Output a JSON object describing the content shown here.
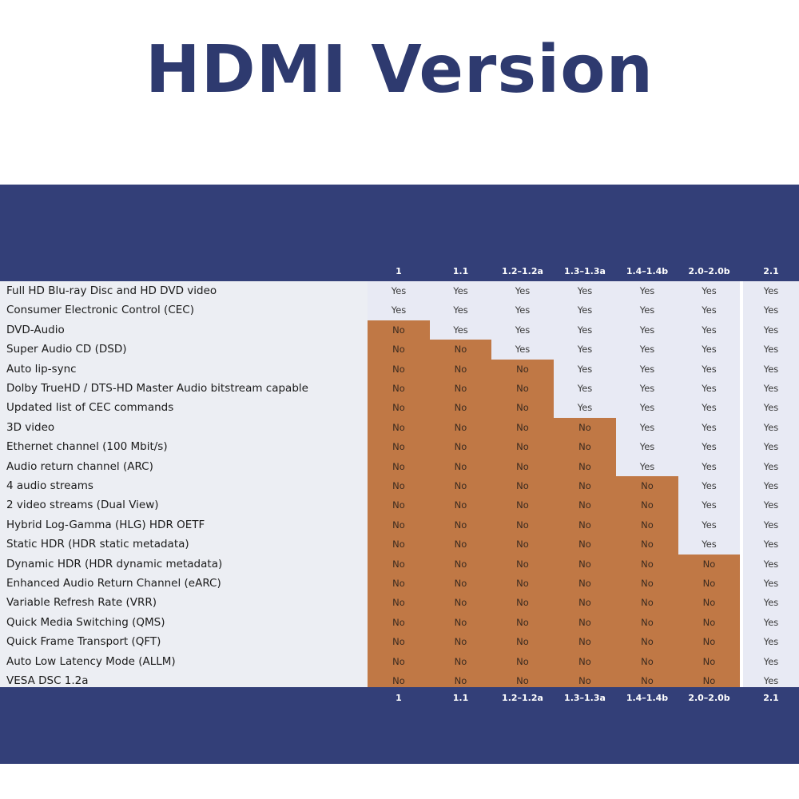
{
  "title": "HDMI Version",
  "versions": [
    "1",
    "1.1",
    "1.2–1.2a",
    "1.3–1.3a",
    "1.4–1.4b",
    "2.0–2.0b",
    "2.1"
  ],
  "colors": {
    "header_band": "#333f78",
    "yes_cell": "#e8eaf4",
    "no_cell": "#c07845",
    "title": "#2e3a6f"
  },
  "yes_label": "Yes",
  "no_label": "No",
  "features": [
    {
      "name": "Full HD Blu-ray Disc and HD DVD video",
      "first_version_index": 0
    },
    {
      "name": "Consumer Electronic Control (CEC)",
      "first_version_index": 0
    },
    {
      "name": "DVD-Audio",
      "first_version_index": 1
    },
    {
      "name": "Super Audio CD (DSD)",
      "first_version_index": 2
    },
    {
      "name": "Auto lip-sync",
      "first_version_index": 3
    },
    {
      "name": "Dolby TrueHD / DTS-HD Master Audio bitstream capable",
      "first_version_index": 3
    },
    {
      "name": "Updated list of CEC commands",
      "first_version_index": 3
    },
    {
      "name": "3D video",
      "first_version_index": 4
    },
    {
      "name": "Ethernet channel (100 Mbit/s)",
      "first_version_index": 4
    },
    {
      "name": "Audio return channel (ARC)",
      "first_version_index": 4
    },
    {
      "name": "4 audio streams",
      "first_version_index": 5
    },
    {
      "name": "2 video streams (Dual View)",
      "first_version_index": 5
    },
    {
      "name": "Hybrid Log-Gamma (HLG) HDR OETF",
      "first_version_index": 5
    },
    {
      "name": "Static HDR (HDR static metadata)",
      "first_version_index": 5
    },
    {
      "name": "Dynamic HDR (HDR dynamic metadata)",
      "first_version_index": 6
    },
    {
      "name": "Enhanced Audio Return Channel (eARC)",
      "first_version_index": 6
    },
    {
      "name": "Variable Refresh Rate (VRR)",
      "first_version_index": 6
    },
    {
      "name": "Quick Media Switching (QMS)",
      "first_version_index": 6
    },
    {
      "name": "Quick Frame Transport (QFT)",
      "first_version_index": 6
    },
    {
      "name": "Auto Low Latency Mode (ALLM)",
      "first_version_index": 6
    },
    {
      "name": "VESA DSC 1.2a",
      "first_version_index": 6
    }
  ]
}
